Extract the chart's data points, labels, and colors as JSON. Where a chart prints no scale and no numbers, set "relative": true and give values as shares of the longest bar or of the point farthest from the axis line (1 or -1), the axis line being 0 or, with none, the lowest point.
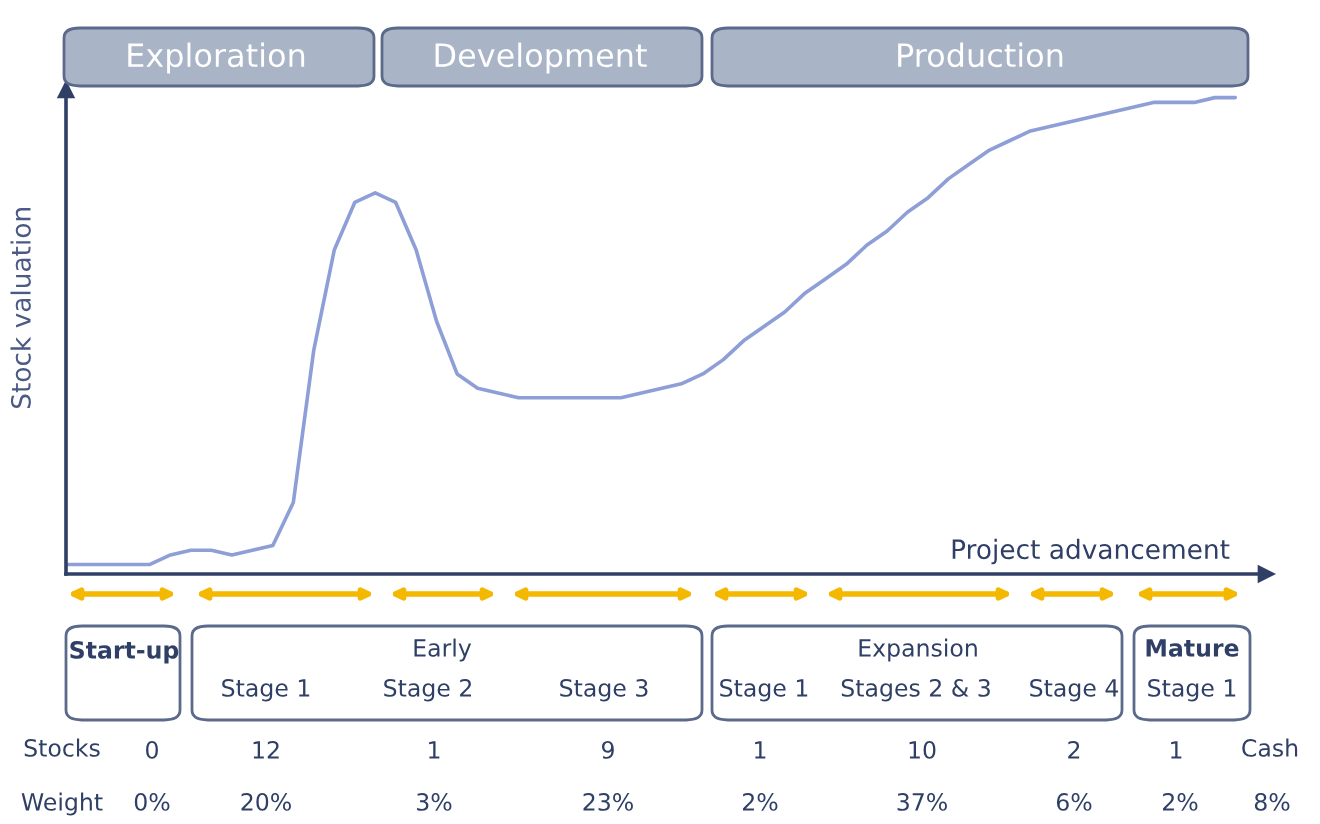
{
  "chart_data": {
    "type": "line",
    "relative": true,
    "xlabel": "Project advancement",
    "ylabel": "Stock valuation",
    "categories": [
      null,
      null,
      null,
      null,
      null,
      null,
      null,
      null,
      null,
      null,
      null,
      null,
      null,
      null,
      null,
      null,
      null,
      null,
      null,
      null,
      null,
      null,
      null,
      null,
      null,
      null,
      null,
      null,
      null,
      null,
      null,
      null,
      null,
      null,
      null,
      null,
      null,
      null,
      null,
      null,
      null,
      null,
      null,
      null,
      null,
      null,
      null,
      null,
      null,
      null,
      null,
      null,
      null,
      null,
      null,
      null,
      null,
      null
    ],
    "series": [
      {
        "color": "#8e9ed6",
        "values": [
          0.02,
          0.02,
          0.02,
          0.02,
          0.02,
          0.04,
          0.05,
          0.05,
          0.04,
          0.05,
          0.06,
          0.15,
          0.47,
          0.68,
          0.78,
          0.8,
          0.78,
          0.68,
          0.53,
          0.42,
          0.39,
          0.38,
          0.37,
          0.37,
          0.37,
          0.37,
          0.37,
          0.37,
          0.38,
          0.39,
          0.4,
          0.42,
          0.45,
          0.49,
          0.52,
          0.55,
          0.59,
          0.62,
          0.65,
          0.69,
          0.72,
          0.76,
          0.79,
          0.83,
          0.86,
          0.89,
          0.91,
          0.93,
          0.94,
          0.95,
          0.96,
          0.97,
          0.98,
          0.99,
          0.99,
          0.99,
          1.0,
          1.0
        ]
      }
    ],
    "annotations": [
      "Exploration",
      "Development",
      "Production",
      "Start-up",
      "Early",
      "Expansion",
      "Mature",
      "Stage 1",
      "Stage 2",
      "Stage 3",
      "Stage 1",
      "Stages 2 & 3",
      "Stage 4",
      "Stage 1",
      "Stocks",
      "0",
      "12",
      "1",
      "9",
      "1",
      "10",
      "2",
      "1",
      "Cash",
      "Weight",
      "0%",
      "20%",
      "3%",
      "23%",
      "2%",
      "37%",
      "6%",
      "2%",
      "8%"
    ]
  }
}
